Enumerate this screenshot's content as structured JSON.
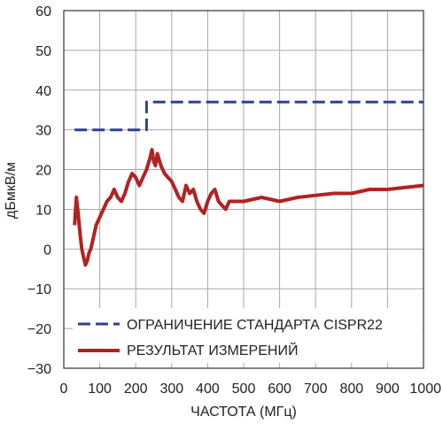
{
  "chart_data": {
    "type": "line",
    "title": "",
    "xlabel": "ЧАСТОТА (МГц)",
    "ylabel": "дБмкВ/м",
    "xlim": [
      0,
      1000
    ],
    "ylim": [
      -30,
      60
    ],
    "x_ticks": [
      0,
      100,
      200,
      300,
      400,
      500,
      600,
      700,
      800,
      900,
      1000
    ],
    "y_ticks": [
      60,
      50,
      40,
      30,
      20,
      10,
      0,
      -10,
      -20,
      -30
    ],
    "x_tick_labels": [
      "0",
      "100",
      "200",
      "300",
      "400",
      "500",
      "600",
      "700",
      "800",
      "900",
      "1000"
    ],
    "y_tick_labels": [
      "60",
      "50",
      "40",
      "30",
      "20",
      "10",
      "0",
      "−10",
      "−20",
      "−30"
    ],
    "grid": true,
    "legend_position": "bottom-right",
    "series": [
      {
        "name": "ОГРАНИЧЕНИЕ СТАНДАРТА CISPR22",
        "color": "#2d3f9b",
        "style": "dashed",
        "x": [
          30,
          230,
          230,
          1000
        ],
        "y": [
          30,
          30,
          37,
          37
        ]
      },
      {
        "name": "РЕЗУЛЬТАТ ИЗМЕРЕНИЙ",
        "color": "#b22222",
        "style": "solid",
        "x": [
          30,
          35,
          40,
          45,
          50,
          55,
          60,
          65,
          70,
          75,
          80,
          85,
          90,
          95,
          100,
          110,
          120,
          130,
          140,
          150,
          160,
          170,
          180,
          190,
          200,
          210,
          220,
          230,
          240,
          245,
          250,
          255,
          260,
          270,
          280,
          290,
          300,
          310,
          320,
          330,
          340,
          350,
          360,
          370,
          380,
          390,
          400,
          410,
          420,
          430,
          440,
          450,
          460,
          480,
          500,
          550,
          600,
          650,
          700,
          750,
          800,
          850,
          900,
          950,
          1000
        ],
        "y": [
          6,
          13,
          9,
          4,
          0,
          -2,
          -4,
          -3,
          -1,
          0,
          2,
          4,
          6,
          7,
          8,
          10,
          12,
          13,
          15,
          13,
          12,
          14,
          17,
          19,
          18,
          16,
          18,
          20,
          23,
          25,
          22,
          21,
          24,
          21,
          19,
          18,
          17,
          15,
          13,
          12,
          16,
          14,
          15,
          12,
          10,
          9,
          12,
          14,
          15,
          12,
          11,
          10,
          12,
          12,
          12,
          13,
          12,
          13,
          13.5,
          14,
          14,
          15,
          15,
          15.5,
          16
        ]
      }
    ]
  }
}
